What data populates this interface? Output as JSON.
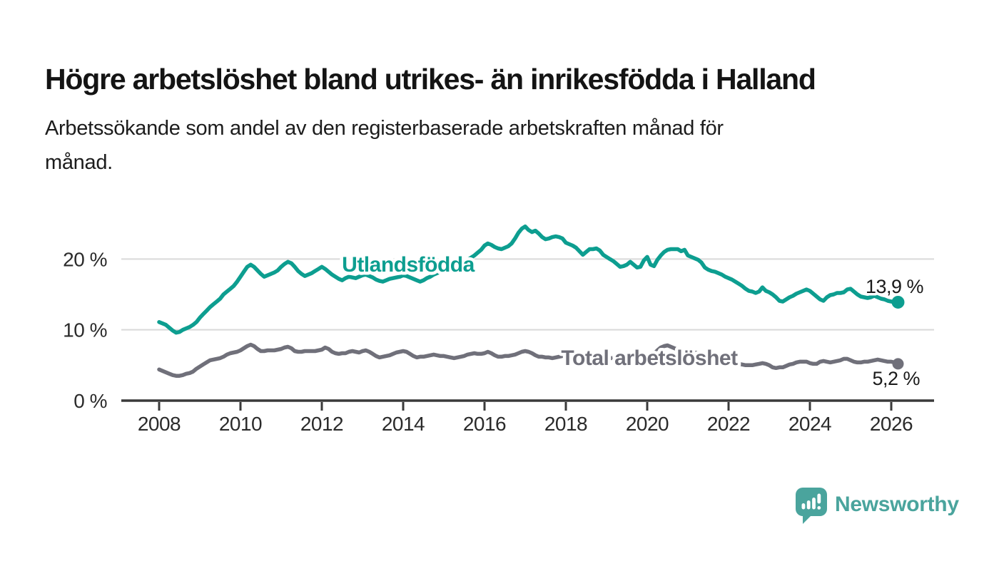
{
  "title": "Högre arbetslöshet bland utrikes- än inrikesfödda i Halland",
  "subtitle_lines": [
    "Arbetssökande som andel av den registerbaserade arbetskraften månad för",
    "månad."
  ],
  "colors": {
    "foreign_born_line": "#0d9e90",
    "total_line": "#70707a",
    "gridline": "#d9d9d9",
    "axis": "#3a3a3a",
    "tick_text": "#2b2b2b",
    "title_text": "#141414",
    "logo_teal": "#4aa49d",
    "background": "#ffffff"
  },
  "logo": {
    "text": "Newsworthy",
    "icon": "speech-bubble-bar-chart"
  },
  "chart_data": {
    "type": "line",
    "unit": "%",
    "x_start_year": 2008,
    "points_per_year": 12,
    "x_tick_years": [
      2008,
      2010,
      2012,
      2014,
      2016,
      2018,
      2020,
      2022,
      2024,
      2026
    ],
    "y_ticks": [
      {
        "value": 20,
        "label": "20 %"
      },
      {
        "value": 10,
        "label": "10 %"
      },
      {
        "value": 0,
        "label": "0 %"
      }
    ],
    "ylim": [
      0,
      26
    ],
    "grid": "horizontal-only",
    "legend_position": "inline-on-line",
    "series": [
      {
        "name": "Utlandsfödda",
        "end_label": "13,9 %",
        "end_value": 13.9,
        "color": "#0d9e90",
        "values": [
          11.1,
          10.9,
          10.7,
          10.3,
          9.9,
          9.6,
          9.7,
          10.0,
          10.2,
          10.4,
          10.7,
          11.1,
          11.7,
          12.2,
          12.7,
          13.2,
          13.6,
          14.0,
          14.4,
          15.0,
          15.4,
          15.8,
          16.2,
          16.8,
          17.5,
          18.2,
          18.9,
          19.2,
          18.9,
          18.4,
          17.9,
          17.5,
          17.7,
          17.9,
          18.1,
          18.4,
          18.9,
          19.3,
          19.6,
          19.4,
          18.9,
          18.3,
          17.9,
          17.6,
          17.8,
          18.0,
          18.3,
          18.6,
          18.9,
          18.6,
          18.2,
          17.8,
          17.5,
          17.2,
          17.0,
          17.3,
          17.5,
          17.4,
          17.3,
          17.5,
          17.7,
          17.8,
          17.6,
          17.4,
          17.1,
          16.9,
          16.8,
          17.0,
          17.2,
          17.3,
          17.4,
          17.5,
          17.7,
          17.6,
          17.4,
          17.2,
          17.0,
          16.8,
          17.0,
          17.3,
          17.5,
          17.8,
          18.0,
          18.2,
          18.5,
          18.7,
          18.8,
          19.0,
          19.1,
          19.3,
          19.6,
          19.9,
          20.2,
          20.5,
          20.9,
          21.3,
          21.9,
          22.2,
          22.0,
          21.7,
          21.5,
          21.4,
          21.6,
          21.8,
          22.2,
          22.9,
          23.7,
          24.3,
          24.6,
          24.1,
          23.8,
          24.0,
          23.6,
          23.1,
          22.8,
          22.9,
          23.1,
          23.2,
          23.1,
          22.9,
          22.3,
          22.1,
          21.9,
          21.6,
          21.1,
          20.6,
          21.0,
          21.4,
          21.4,
          21.5,
          21.2,
          20.6,
          20.3,
          20.0,
          19.7,
          19.3,
          18.9,
          19.0,
          19.2,
          19.6,
          19.2,
          18.8,
          18.9,
          19.8,
          20.3,
          19.2,
          19.0,
          19.9,
          20.5,
          21.0,
          21.3,
          21.4,
          21.4,
          21.4,
          21.1,
          21.3,
          20.5,
          20.3,
          20.1,
          19.9,
          19.5,
          18.8,
          18.5,
          18.3,
          18.2,
          18.0,
          17.8,
          17.5,
          17.3,
          17.1,
          16.8,
          16.5,
          16.2,
          15.8,
          15.5,
          15.4,
          15.2,
          15.4,
          16.0,
          15.5,
          15.3,
          15.0,
          14.6,
          14.1,
          14.0,
          14.3,
          14.6,
          14.8,
          15.1,
          15.3,
          15.5,
          15.7,
          15.5,
          15.1,
          14.7,
          14.3,
          14.1,
          14.6,
          14.9,
          15.0,
          15.2,
          15.2,
          15.3,
          15.7,
          15.8,
          15.4,
          15.0,
          14.7,
          14.6,
          14.5,
          14.6,
          14.8,
          14.6,
          14.4,
          14.3,
          14.1,
          14.0,
          13.9,
          13.9
        ]
      },
      {
        "name": "Total arbetslöshet",
        "end_label": "5,2 %",
        "end_value": 5.2,
        "color": "#70707a",
        "values": [
          4.4,
          4.2,
          4.0,
          3.8,
          3.6,
          3.5,
          3.5,
          3.6,
          3.8,
          3.9,
          4.1,
          4.5,
          4.8,
          5.1,
          5.4,
          5.7,
          5.8,
          5.9,
          6.0,
          6.2,
          6.5,
          6.7,
          6.8,
          6.9,
          7.1,
          7.4,
          7.7,
          7.9,
          7.7,
          7.3,
          7.0,
          7.0,
          7.1,
          7.1,
          7.1,
          7.2,
          7.3,
          7.5,
          7.6,
          7.4,
          7.0,
          6.9,
          6.9,
          7.0,
          7.0,
          7.0,
          7.0,
          7.1,
          7.2,
          7.5,
          7.3,
          6.9,
          6.7,
          6.6,
          6.7,
          6.7,
          6.9,
          7.0,
          6.9,
          6.8,
          7.0,
          7.1,
          6.9,
          6.6,
          6.3,
          6.1,
          6.2,
          6.3,
          6.4,
          6.6,
          6.8,
          6.9,
          7.0,
          6.9,
          6.6,
          6.3,
          6.1,
          6.2,
          6.2,
          6.3,
          6.4,
          6.5,
          6.4,
          6.3,
          6.3,
          6.2,
          6.1,
          6.0,
          6.1,
          6.2,
          6.3,
          6.5,
          6.6,
          6.7,
          6.6,
          6.6,
          6.7,
          6.9,
          6.7,
          6.4,
          6.2,
          6.2,
          6.3,
          6.3,
          6.4,
          6.5,
          6.7,
          6.9,
          7.0,
          6.9,
          6.7,
          6.4,
          6.2,
          6.2,
          6.1,
          6.1,
          6.0,
          6.1,
          6.2,
          6.3,
          6.3,
          6.2,
          6.1,
          6.0,
          5.9,
          5.8,
          5.8,
          5.9,
          5.9,
          6.0,
          6.0,
          6.1,
          6.1,
          6.0,
          6.0,
          5.9,
          5.9,
          5.9,
          6.0,
          6.0,
          6.1,
          6.1,
          6.2,
          6.3,
          6.4,
          6.5,
          6.6,
          7.1,
          7.5,
          7.7,
          7.8,
          7.6,
          7.4,
          7.2,
          7.1,
          7.0,
          7.0,
          6.9,
          6.8,
          6.7,
          6.5,
          6.3,
          6.2,
          6.1,
          6.0,
          5.9,
          5.8,
          5.7,
          5.6,
          5.4,
          5.3,
          5.2,
          5.1,
          5.0,
          5.0,
          5.0,
          5.1,
          5.2,
          5.3,
          5.2,
          5.0,
          4.7,
          4.6,
          4.7,
          4.7,
          4.9,
          5.1,
          5.2,
          5.4,
          5.5,
          5.5,
          5.5,
          5.3,
          5.2,
          5.2,
          5.5,
          5.6,
          5.5,
          5.4,
          5.5,
          5.6,
          5.7,
          5.9,
          5.9,
          5.7,
          5.5,
          5.4,
          5.4,
          5.5,
          5.5,
          5.6,
          5.7,
          5.8,
          5.7,
          5.6,
          5.5,
          5.5,
          5.4,
          5.2
        ]
      }
    ]
  }
}
